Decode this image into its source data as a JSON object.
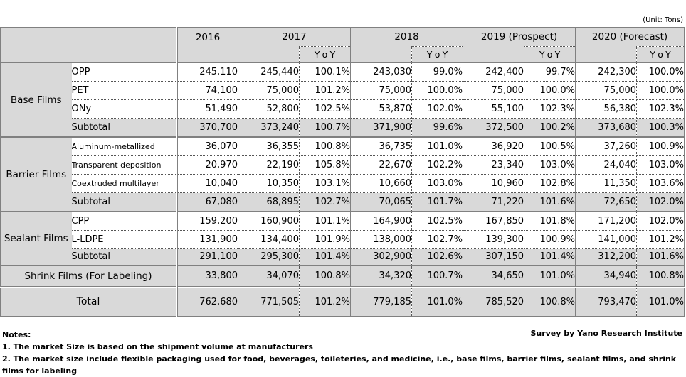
{
  "unit": "(Unit: Tons)",
  "source": "Survey by Yano Research Institute",
  "notes": {
    "title": "Notes:",
    "lines": [
      "1. The market Size is based on the shipment volume at manufacturers",
      "2. The market size include flexible packaging used for food, beverages, toileteries, and medicine, i.e., base films, barrier films, sealant films, and shrink films for labeling"
    ]
  },
  "chart_data": {
    "type": "table",
    "columns": [
      "2016",
      "2017",
      "2018",
      "2019 (Prospect)",
      "2020 (Forecast)"
    ],
    "yoy_label": "Y-o-Y",
    "groups": [
      {
        "name": "Base Films",
        "rows": [
          {
            "label": "OPP",
            "values": [
              "245,110",
              "245,440",
              "100.1%",
              "243,030",
              "99.0%",
              "242,400",
              "99.7%",
              "242,300",
              "100.0%"
            ]
          },
          {
            "label": "PET",
            "values": [
              "74,100",
              "75,000",
              "101.2%",
              "75,000",
              "100.0%",
              "75,000",
              "100.0%",
              "75,000",
              "100.0%"
            ]
          },
          {
            "label": "ONy",
            "values": [
              "51,490",
              "52,800",
              "102.5%",
              "53,870",
              "102.0%",
              "55,100",
              "102.3%",
              "56,380",
              "102.3%"
            ]
          }
        ],
        "subtotal": {
          "label": "Subtotal",
          "values": [
            "370,700",
            "373,240",
            "100.7%",
            "371,900",
            "99.6%",
            "372,500",
            "100.2%",
            "373,680",
            "100.3%"
          ]
        }
      },
      {
        "name": "Barrier Films",
        "rows": [
          {
            "label": "Aluminum-metallized",
            "values": [
              "36,070",
              "36,355",
              "100.8%",
              "36,735",
              "101.0%",
              "36,920",
              "100.5%",
              "37,260",
              "100.9%"
            ]
          },
          {
            "label": "Transparent deposition",
            "values": [
              "20,970",
              "22,190",
              "105.8%",
              "22,670",
              "102.2%",
              "23,340",
              "103.0%",
              "24,040",
              "103.0%"
            ]
          },
          {
            "label": "Coextruded multilayer",
            "values": [
              "10,040",
              "10,350",
              "103.1%",
              "10,660",
              "103.0%",
              "10,960",
              "102.8%",
              "11,350",
              "103.6%"
            ]
          }
        ],
        "subtotal": {
          "label": "Subtotal",
          "values": [
            "67,080",
            "68,895",
            "102.7%",
            "70,065",
            "101.7%",
            "71,220",
            "101.6%",
            "72,650",
            "102.0%"
          ]
        }
      },
      {
        "name": "Sealant Films",
        "rows": [
          {
            "label": "CPP",
            "values": [
              "159,200",
              "160,900",
              "101.1%",
              "164,900",
              "102.5%",
              "167,850",
              "101.8%",
              "171,200",
              "102.0%"
            ]
          },
          {
            "label": "L-LDPE",
            "values": [
              "131,900",
              "134,400",
              "101.9%",
              "138,000",
              "102.7%",
              "139,300",
              "100.9%",
              "141,000",
              "101.2%"
            ]
          }
        ],
        "subtotal": {
          "label": "Subtotal",
          "values": [
            "291,100",
            "295,300",
            "101.4%",
            "302,900",
            "102.6%",
            "307,150",
            "101.4%",
            "312,200",
            "101.6%"
          ]
        }
      }
    ],
    "shrink": {
      "label": "Shrink Films (For Labeling)",
      "values": [
        "33,800",
        "34,070",
        "100.8%",
        "34,320",
        "100.7%",
        "34,650",
        "101.0%",
        "34,940",
        "100.8%"
      ]
    },
    "total": {
      "label": "Total",
      "values": [
        "762,680",
        "771,505",
        "101.2%",
        "779,185",
        "101.0%",
        "785,520",
        "100.8%",
        "793,470",
        "101.0%"
      ]
    }
  }
}
